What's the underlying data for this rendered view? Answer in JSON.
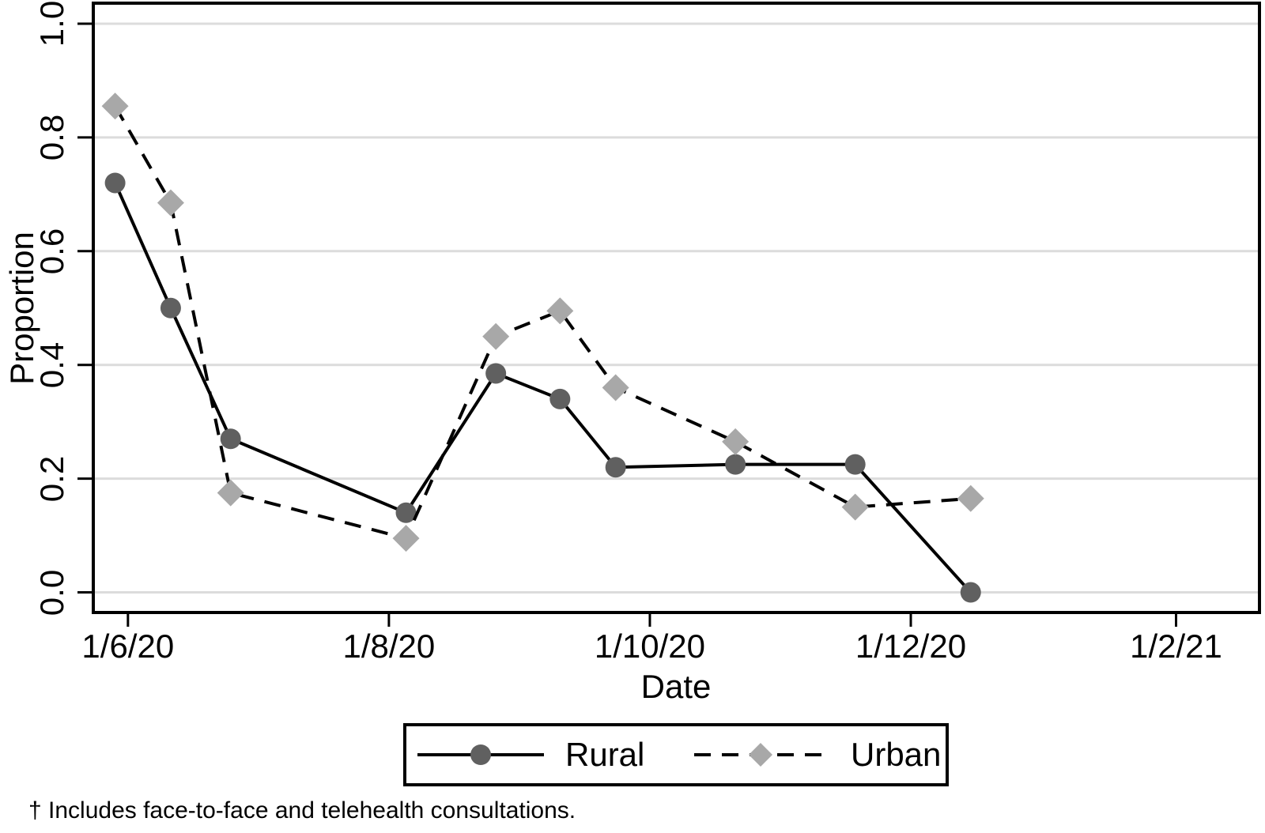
{
  "figure": {
    "footnote": "† Includes face-to-face and telehealth consultations."
  },
  "chart_data": {
    "type": "line",
    "title": "",
    "xlabel": "Date",
    "ylabel": "Proportion",
    "grid": true,
    "legend_position": "bottom",
    "x_tick_labels": [
      "1/6/20",
      "1/8/20",
      "1/10/20",
      "1/12/20",
      "1/2/21"
    ],
    "x_tick_days": [
      0,
      61,
      122,
      183,
      245
    ],
    "x_domain_days": [
      -8.1,
      264.5
    ],
    "y_ticks": [
      "0.0",
      "0.2",
      "0.4",
      "0.6",
      "0.8",
      "1.0"
    ],
    "y_tick_values": [
      0.0,
      0.2,
      0.4,
      0.6,
      0.8,
      1.0
    ],
    "y_domain": [
      -0.0354,
      1.0361
    ],
    "x_days": [
      -3,
      10,
      24,
      65,
      86,
      101,
      114,
      142,
      170,
      197
    ],
    "approx_dates": [
      "29/5/20",
      "10/6/20",
      "24/6/20",
      "5/8/20",
      "26/8/20",
      "10/9/20",
      "23/9/20",
      "21/10/20",
      "18/11/20",
      "15/12/20"
    ],
    "series": [
      {
        "name": "Rural",
        "marker": "circle",
        "line": "solid",
        "marker_color": "#606060",
        "line_color": "#000000",
        "values": [
          0.72,
          0.5,
          0.27,
          0.14,
          0.385,
          0.34,
          0.22,
          0.225,
          0.225,
          0.0
        ]
      },
      {
        "name": "Urban",
        "marker": "diamond",
        "line": "dashed",
        "marker_color": "#a8a8a8",
        "line_color": "#000000",
        "values": [
          0.855,
          0.685,
          0.175,
          0.095,
          0.45,
          0.495,
          0.36,
          0.265,
          0.15,
          0.165
        ]
      }
    ]
  },
  "legend": {
    "items": [
      {
        "label": "Rural"
      },
      {
        "label": "Urban"
      }
    ]
  },
  "colors": {
    "background": "#ffffff",
    "grid": "#dcdcdc",
    "axis": "#000000",
    "text": "#000000",
    "rural_marker": "#606060",
    "urban_marker": "#a8a8a8"
  }
}
